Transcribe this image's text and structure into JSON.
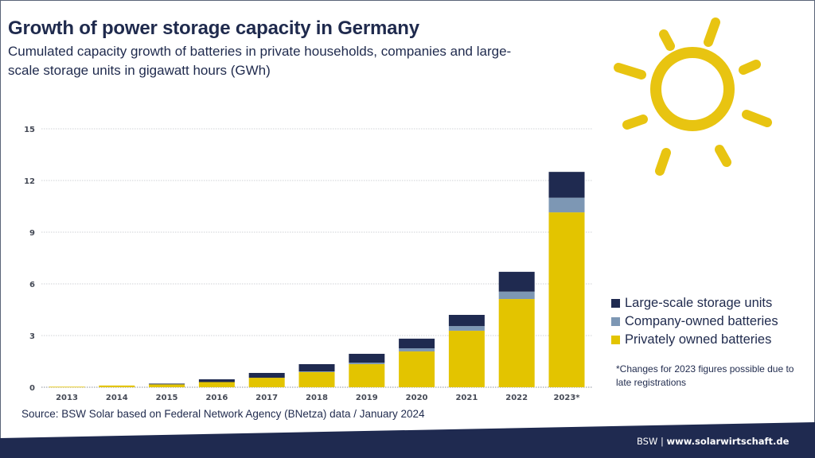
{
  "header": {
    "title": "Growth of power storage capacity in Germany",
    "subtitle": "Cumulated capacity growth of batteries in private households, companies and large-scale storage units in gigawatt hours (GWh)"
  },
  "colors": {
    "private": "#e3c400",
    "company": "#7d97b4",
    "large": "#1f2a50",
    "navy": "#1f2a4d",
    "sun": "#e8c411",
    "footer_band": "#1f2a50"
  },
  "chart_data": {
    "type": "bar",
    "stacked": true,
    "title": "Growth of power storage capacity in Germany",
    "subtitle": "Cumulated capacity growth of batteries in private households, companies and large-scale storage units in gigawatt hours (GWh)",
    "xlabel": "",
    "ylabel": "GWh",
    "ylim": [
      0,
      15
    ],
    "yticks": [
      0,
      3,
      6,
      9,
      12,
      15
    ],
    "grid": true,
    "legend_position": "right",
    "categories": [
      "2013",
      "2014",
      "2015",
      "2016",
      "2017",
      "2018",
      "2019",
      "2020",
      "2021",
      "2022",
      "2023*"
    ],
    "series": [
      {
        "name": "Privately owned batteries",
        "color": "#e3c400",
        "values": [
          0.03,
          0.1,
          0.19,
          0.3,
          0.55,
          0.88,
          1.34,
          2.08,
          3.28,
          5.12,
          10.15
        ]
      },
      {
        "name": "Company-owned batteries",
        "color": "#7d97b4",
        "values": [
          0.0,
          0.0,
          0.01,
          0.0,
          0.0,
          0.04,
          0.09,
          0.18,
          0.27,
          0.43,
          0.85
        ]
      },
      {
        "name": "Large-scale storage units",
        "color": "#1f2a50",
        "values": [
          0.0,
          0.0,
          0.01,
          0.16,
          0.28,
          0.42,
          0.51,
          0.56,
          0.65,
          1.15,
          1.5
        ]
      }
    ]
  },
  "legend": {
    "items": [
      {
        "label": "Large-scale storage units",
        "color": "#1f2a50"
      },
      {
        "label": "Company-owned batteries",
        "color": "#7d97b4"
      },
      {
        "label": "Privately owned batteries",
        "color": "#e3c400"
      }
    ]
  },
  "footnote": "*Changes for 2023 figures possible due to late registrations",
  "source": "Source: BSW Solar based on Federal Network Agency (BNetza) data / January 2024",
  "footer": {
    "brand": "BSW",
    "separator": " | ",
    "url": "www.solarwirtschaft.de"
  },
  "icons": {
    "sun": "sun-icon"
  }
}
